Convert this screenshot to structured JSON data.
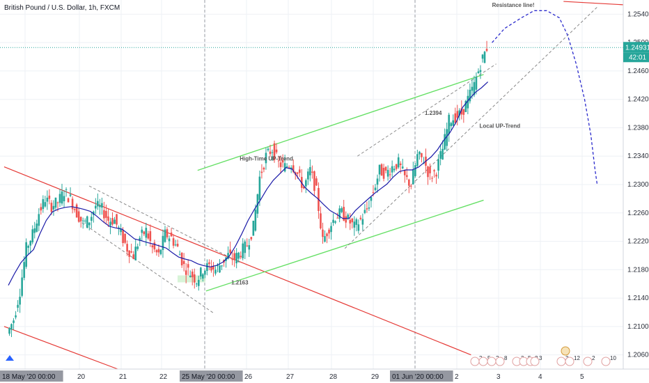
{
  "header": {
    "title": "British Pound / U.S. Dollar, 1h, FXCM"
  },
  "colors": {
    "up": "#26a69a",
    "down": "#ef5350",
    "resistance": "#e53935",
    "uptrend": "#66e066",
    "curve": "#1a1aa8",
    "channel": "#888888",
    "forecast": "#2a2acc",
    "price_line": "#26a69a",
    "price_tag": "#26a69a",
    "highlight": "#c8f0c8"
  },
  "chart_data": {
    "type": "candlestick",
    "instrument": "British Pound / U.S. Dollar",
    "interval": "1h",
    "source": "FXCM",
    "y_ticks": [
      1.206,
      1.21,
      1.214,
      1.218,
      1.222,
      1.226,
      1.23,
      1.234,
      1.238,
      1.242,
      1.246,
      1.25,
      1.254
    ],
    "y_range": [
      1.204,
      1.256
    ],
    "x_ticks": [
      {
        "label": "18 May '20   00:00",
        "day": 18,
        "highlight": true
      },
      {
        "label": "20",
        "day": 20
      },
      {
        "label": "21",
        "day": 21
      },
      {
        "label": "22",
        "day": 22
      },
      {
        "label": "25 May '20   00:00",
        "day": 23,
        "highlight": true
      },
      {
        "label": "26",
        "day": 24
      },
      {
        "label": "27",
        "day": 25
      },
      {
        "label": "28",
        "day": 26
      },
      {
        "label": "29",
        "day": 27
      },
      {
        "label": "01 Jun '20   00:00",
        "day": 28,
        "highlight": true
      },
      {
        "label": "2",
        "day": 29
      },
      {
        "label": "3",
        "day": 30
      },
      {
        "label": "4",
        "day": 31
      },
      {
        "label": "5",
        "day": 32
      }
    ],
    "last_price": {
      "value": "1.24931",
      "countdown": "42:01",
      "y": 1.2493
    },
    "price_path": [
      [
        0.0,
        1.209
      ],
      [
        0.15,
        1.211
      ],
      [
        0.3,
        1.215
      ],
      [
        0.45,
        1.221
      ],
      [
        0.6,
        1.223
      ],
      [
        0.75,
        1.226
      ],
      [
        0.9,
        1.228
      ],
      [
        1.05,
        1.227
      ],
      [
        1.2,
        1.2275
      ],
      [
        1.35,
        1.229
      ],
      [
        1.5,
        1.228
      ],
      [
        1.65,
        1.226
      ],
      [
        1.8,
        1.2245
      ],
      [
        1.95,
        1.225
      ],
      [
        2.1,
        1.227
      ],
      [
        2.25,
        1.2265
      ],
      [
        2.4,
        1.225
      ],
      [
        2.55,
        1.225
      ],
      [
        2.7,
        1.223
      ],
      [
        2.85,
        1.221
      ],
      [
        3.0,
        1.22
      ],
      [
        3.15,
        1.2225
      ],
      [
        3.3,
        1.2235
      ],
      [
        3.45,
        1.221
      ],
      [
        3.6,
        1.22
      ],
      [
        3.75,
        1.223
      ],
      [
        3.9,
        1.2225
      ],
      [
        4.05,
        1.221
      ],
      [
        4.2,
        1.2185
      ],
      [
        4.35,
        1.2175
      ],
      [
        4.5,
        1.2165
      ],
      [
        4.65,
        1.218
      ],
      [
        4.8,
        1.2185
      ],
      [
        4.95,
        1.218
      ],
      [
        5.1,
        1.219
      ],
      [
        5.25,
        1.22
      ],
      [
        5.4,
        1.2195
      ],
      [
        5.55,
        1.2205
      ],
      [
        5.7,
        1.2215
      ],
      [
        5.85,
        1.224
      ],
      [
        6.0,
        1.231
      ],
      [
        6.15,
        1.234
      ],
      [
        6.3,
        1.235
      ],
      [
        6.45,
        1.233
      ],
      [
        6.6,
        1.2325
      ],
      [
        6.75,
        1.233
      ],
      [
        6.9,
        1.2315
      ],
      [
        7.05,
        1.2295
      ],
      [
        7.2,
        1.232
      ],
      [
        7.35,
        1.229
      ],
      [
        7.5,
        1.222
      ],
      [
        7.65,
        1.224
      ],
      [
        7.8,
        1.2255
      ],
      [
        7.95,
        1.226
      ],
      [
        8.1,
        1.225
      ],
      [
        8.25,
        1.224
      ],
      [
        8.4,
        1.225
      ],
      [
        8.55,
        1.2265
      ],
      [
        8.7,
        1.229
      ],
      [
        8.85,
        1.232
      ],
      [
        9.0,
        1.2315
      ],
      [
        9.15,
        1.2325
      ],
      [
        9.3,
        1.233
      ],
      [
        9.45,
        1.231
      ],
      [
        9.6,
        1.23
      ],
      [
        9.75,
        1.234
      ],
      [
        9.9,
        1.2335
      ],
      [
        10.05,
        1.231
      ],
      [
        10.2,
        1.232
      ],
      [
        10.35,
        1.235
      ],
      [
        10.5,
        1.239
      ],
      [
        10.65,
        1.2395
      ],
      [
        10.8,
        1.24
      ],
      [
        10.95,
        1.242
      ],
      [
        11.1,
        1.244
      ],
      [
        11.25,
        1.247
      ],
      [
        11.4,
        1.2493
      ]
    ],
    "lines": [
      {
        "name": "resistance-line-upper",
        "points": [
          [
            13.2,
            1.2558
          ],
          [
            16.2,
            1.2548
          ]
        ]
      },
      {
        "name": "resistance-line-lower",
        "points": [
          [
            -0.1,
            1.21
          ],
          [
            2.6,
            1.204
          ]
        ]
      },
      {
        "name": "downtrend-resistance",
        "points": [
          [
            -0.1,
            1.2325
          ],
          [
            11.0,
            1.206
          ]
        ]
      },
      {
        "name": "high-time-uptrend-upper",
        "points": [
          [
            4.5,
            1.232
          ],
          [
            11.3,
            1.2455
          ]
        ]
      },
      {
        "name": "high-time-uptrend-lower",
        "points": [
          [
            4.7,
            1.215
          ],
          [
            11.3,
            1.2278
          ]
        ]
      },
      {
        "name": "local-uptrend-upper",
        "points": [
          [
            8.3,
            1.234
          ],
          [
            11.6,
            1.247
          ]
        ]
      },
      {
        "name": "local-uptrend-lower",
        "points": [
          [
            8.0,
            1.221
          ],
          [
            14.0,
            1.255
          ]
        ]
      }
    ],
    "forecast_curve": [
      [
        11.5,
        1.25
      ],
      [
        11.8,
        1.252
      ],
      [
        12.2,
        1.2535
      ],
      [
        12.5,
        1.2545
      ],
      [
        12.8,
        1.2545
      ],
      [
        13.1,
        1.2535
      ],
      [
        13.3,
        1.251
      ],
      [
        13.5,
        1.247
      ],
      [
        13.7,
        1.242
      ],
      [
        13.85,
        1.237
      ],
      [
        13.95,
        1.232
      ],
      [
        14.0,
        1.23
      ]
    ],
    "annotations": [
      {
        "name": "resistance-label",
        "text": "Resistance line!",
        "x": 11.5,
        "y": 1.255
      },
      {
        "name": "high-time-uptrend-label",
        "text": "High-Time UP-Trend",
        "x": 5.5,
        "y": 1.2334
      },
      {
        "name": "local-uptrend-label",
        "text": "Local UP-Trend",
        "x": 11.2,
        "y": 1.238
      },
      {
        "name": "level-1-2394",
        "text": "1.2394",
        "x": 9.9,
        "y": 1.2398
      },
      {
        "name": "level-1-2163",
        "text": "1.2163",
        "x": 5.3,
        "y": 1.2159
      }
    ],
    "event_labels": [
      "2",
      "5",
      "2",
      "8",
      "3",
      "5",
      "2",
      "3",
      "3",
      "12",
      "2",
      "10"
    ]
  }
}
